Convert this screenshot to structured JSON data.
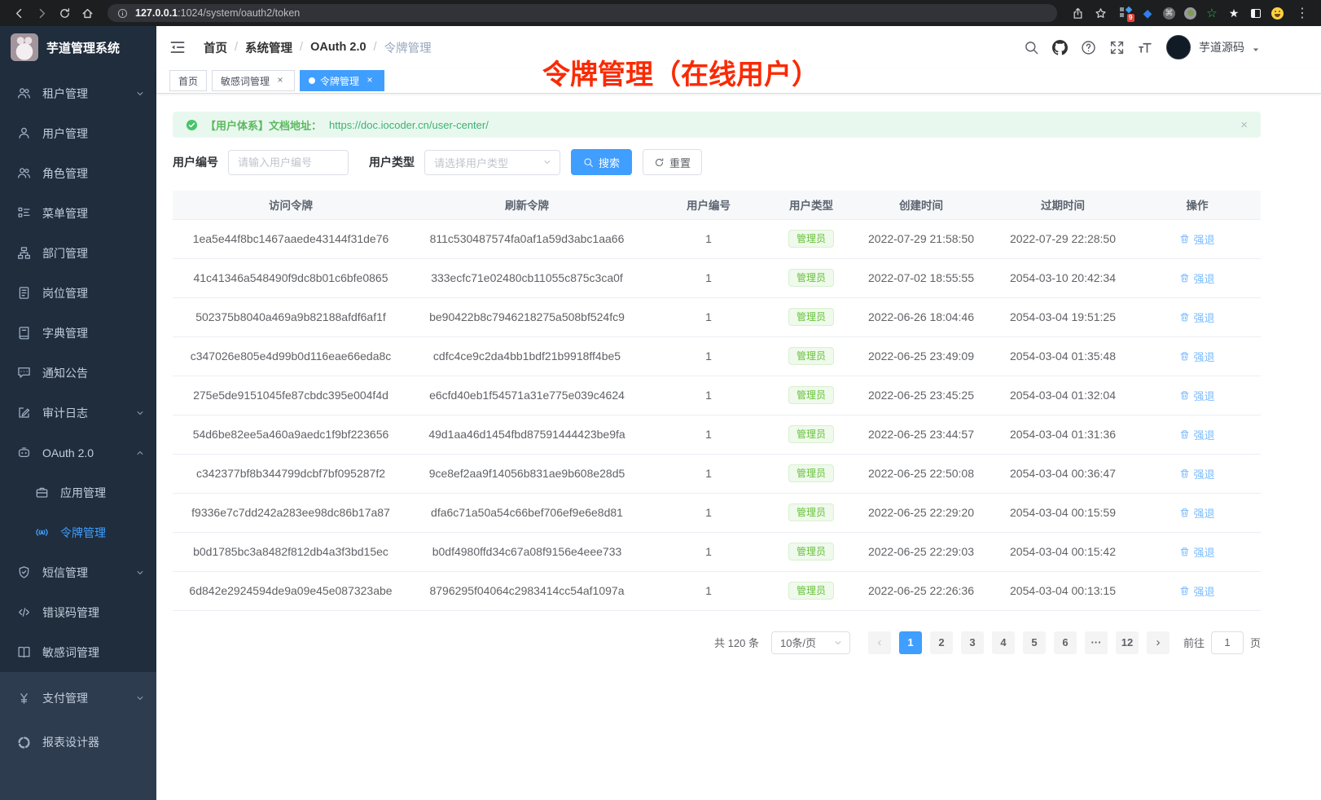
{
  "browser": {
    "url_host": "127.0.0.1",
    "url_path": ":1024/system/oauth2/token",
    "extension_badge": "9"
  },
  "sidebar": {
    "title": "芋道管理系统",
    "items": [
      {
        "sym": "users",
        "name": "tenant-management",
        "label": "租户管理",
        "chevron": "down"
      },
      {
        "sym": "user",
        "name": "user-management",
        "label": "用户管理"
      },
      {
        "sym": "users",
        "name": "role-management",
        "label": "角色管理"
      },
      {
        "sym": "tree",
        "name": "menu-management",
        "label": "菜单管理"
      },
      {
        "sym": "org",
        "name": "dept-management",
        "label": "部门管理"
      },
      {
        "sym": "badge",
        "name": "post-management",
        "label": "岗位管理"
      },
      {
        "sym": "book",
        "name": "dict-management",
        "label": "字典管理"
      },
      {
        "sym": "chat",
        "name": "notice-announcement",
        "label": "通知公告"
      },
      {
        "sym": "edit",
        "name": "audit-log",
        "label": "审计日志",
        "chevron": "down"
      },
      {
        "sym": "robot",
        "name": "oauth2",
        "label": "OAuth 2.0",
        "chevron": "up",
        "children": [
          {
            "sym": "briefcase",
            "name": "app-management",
            "label": "应用管理"
          },
          {
            "sym": "signal",
            "name": "token-management",
            "label": "令牌管理",
            "active": true
          }
        ]
      },
      {
        "sym": "shield",
        "name": "sms-management",
        "label": "短信管理",
        "chevron": "down"
      },
      {
        "sym": "code",
        "name": "error-code-management",
        "label": "错误码管理"
      },
      {
        "sym": "openbook",
        "name": "sensitive-word-management",
        "label": "敏感词管理"
      }
    ],
    "bottom_items": [
      {
        "sym": "yen",
        "name": "pay-management",
        "label": "支付管理",
        "chevron": "down"
      },
      {
        "sym": "pie",
        "name": "report-designer",
        "label": "报表设计器"
      }
    ]
  },
  "header": {
    "breadcrumb": [
      "首页",
      "系统管理",
      "OAuth 2.0",
      "令牌管理"
    ],
    "username": "芋道源码"
  },
  "tabs": [
    {
      "key": "home",
      "label": "首页",
      "closable": false,
      "active": false
    },
    {
      "key": "sensitive-word",
      "label": "敏感词管理",
      "closable": true,
      "active": false
    },
    {
      "key": "token",
      "label": "令牌管理",
      "closable": true,
      "active": true
    }
  ],
  "annotation": "令牌管理（在线用户）",
  "alert": {
    "prefix": "【用户体系】文档地址：",
    "link": "https://doc.iocoder.cn/user-center/",
    "close": "×"
  },
  "filters": {
    "user_id_label": "用户编号",
    "user_id_placeholder": "请输入用户编号",
    "user_type_label": "用户类型",
    "user_type_placeholder": "请选择用户类型",
    "search_label": "搜索",
    "reset_label": "重置"
  },
  "table": {
    "columns": [
      "访问令牌",
      "刷新令牌",
      "用户编号",
      "用户类型",
      "创建时间",
      "过期时间",
      "操作"
    ],
    "action_label": "强退",
    "rows": [
      {
        "access_token": "1ea5e44f8bc1467aaede43144f31de76",
        "refresh_token": "811c530487574fa0af1a59d3abc1aa66",
        "user_id": "1",
        "user_type": "管理员",
        "created_at": "2022-07-29 21:58:50",
        "expires_at": "2022-07-29 22:28:50"
      },
      {
        "access_token": "41c41346a548490f9dc8b01c6bfe0865",
        "refresh_token": "333ecfc71e02480cb11055c875c3ca0f",
        "user_id": "1",
        "user_type": "管理员",
        "created_at": "2022-07-02 18:55:55",
        "expires_at": "2054-03-10 20:42:34"
      },
      {
        "access_token": "502375b8040a469a9b82188afdf6af1f",
        "refresh_token": "be90422b8c7946218275a508bf524fc9",
        "user_id": "1",
        "user_type": "管理员",
        "created_at": "2022-06-26 18:04:46",
        "expires_at": "2054-03-04 19:51:25"
      },
      {
        "access_token": "c347026e805e4d99b0d116eae66eda8c",
        "refresh_token": "cdfc4ce9c2da4bb1bdf21b9918ff4be5",
        "user_id": "1",
        "user_type": "管理员",
        "created_at": "2022-06-25 23:49:09",
        "expires_at": "2054-03-04 01:35:48"
      },
      {
        "access_token": "275e5de9151045fe87cbdc395e004f4d",
        "refresh_token": "e6cfd40eb1f54571a31e775e039c4624",
        "user_id": "1",
        "user_type": "管理员",
        "created_at": "2022-06-25 23:45:25",
        "expires_at": "2054-03-04 01:32:04"
      },
      {
        "access_token": "54d6be82ee5a460a9aedc1f9bf223656",
        "refresh_token": "49d1aa46d1454fbd87591444423be9fa",
        "user_id": "1",
        "user_type": "管理员",
        "created_at": "2022-06-25 23:44:57",
        "expires_at": "2054-03-04 01:31:36"
      },
      {
        "access_token": "c342377bf8b344799dcbf7bf095287f2",
        "refresh_token": "9ce8ef2aa9f14056b831ae9b608e28d5",
        "user_id": "1",
        "user_type": "管理员",
        "created_at": "2022-06-25 22:50:08",
        "expires_at": "2054-03-04 00:36:47"
      },
      {
        "access_token": "f9336e7c7dd242a283ee98dc86b17a87",
        "refresh_token": "dfa6c71a50a54c66bef706ef9e6e8d81",
        "user_id": "1",
        "user_type": "管理员",
        "created_at": "2022-06-25 22:29:20",
        "expires_at": "2054-03-04 00:15:59"
      },
      {
        "access_token": "b0d1785bc3a8482f812db4a3f3bd15ec",
        "refresh_token": "b0df4980ffd34c67a08f9156e4eee733",
        "user_id": "1",
        "user_type": "管理员",
        "created_at": "2022-06-25 22:29:03",
        "expires_at": "2054-03-04 00:15:42"
      },
      {
        "access_token": "6d842e2924594de9a09e45e087323abe",
        "refresh_token": "8796295f04064c2983414cc54af1097a",
        "user_id": "1",
        "user_type": "管理员",
        "created_at": "2022-06-25 22:26:36",
        "expires_at": "2054-03-04 00:13:15"
      }
    ]
  },
  "pagination": {
    "total": "共 120 条",
    "page_size": "10条/页",
    "pages": [
      "1",
      "2",
      "3",
      "4",
      "5",
      "6",
      "...",
      "12"
    ],
    "active_page": "1",
    "prev": "‹",
    "next": "›",
    "goto_label": "前往",
    "goto_value": "1",
    "page_unit": "页"
  },
  "colors": {
    "primary": "#409eff",
    "sidebar_bg": "#1f2d3d",
    "sidebar_bottom_bg": "#2e3c50",
    "success": "#67c23a",
    "annotation_red": "#fa2a02",
    "kick_link": "#79bbff"
  }
}
